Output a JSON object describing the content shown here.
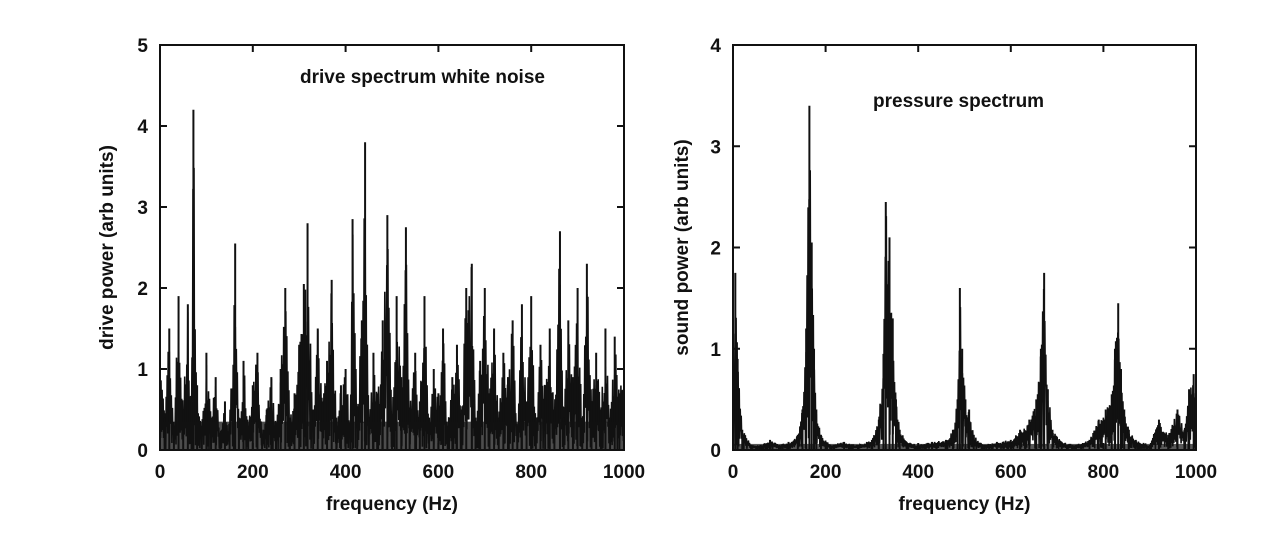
{
  "chart_data": [
    {
      "type": "line",
      "annotation": "drive spectrum  white noise",
      "xlabel": "frequency (Hz)",
      "ylabel": "drive power (arb units)",
      "xlim": [
        0,
        1000
      ],
      "ylim": [
        0,
        5
      ],
      "xticks": [
        "0",
        "200",
        "400",
        "600",
        "800",
        "1000"
      ],
      "yticks": [
        "0",
        "1",
        "2",
        "3",
        "4",
        "5"
      ],
      "grid": false,
      "color": "#111111",
      "description": "dense white-noise spectrum, baseline ~0.3-1.0",
      "series": [
        {
          "x": [
            0,
            10,
            20,
            30,
            40,
            50,
            60,
            68,
            72,
            80,
            90,
            100,
            110,
            120,
            130,
            140,
            150,
            162,
            170,
            180,
            190,
            200,
            210,
            220,
            230,
            240,
            250,
            260,
            270,
            280,
            290,
            300,
            310,
            318,
            330,
            340,
            350,
            360,
            370,
            380,
            390,
            400,
            410,
            415,
            425,
            435,
            442,
            450,
            460,
            470,
            480,
            490,
            500,
            510,
            520,
            530,
            538,
            550,
            560,
            570,
            580,
            590,
            600,
            610,
            620,
            630,
            640,
            650,
            660,
            672,
            680,
            690,
            700,
            710,
            720,
            730,
            740,
            750,
            760,
            770,
            780,
            790,
            800,
            810,
            820,
            830,
            840,
            850,
            862,
            870,
            880,
            890,
            900,
            910,
            920,
            930,
            940,
            950,
            960,
            970,
            980,
            990,
            1000
          ],
          "y": [
            1.6,
            0.4,
            1.5,
            0.3,
            1.9,
            0.5,
            1.8,
            0.6,
            4.2,
            0.8,
            0.3,
            1.2,
            0.4,
            0.9,
            0.2,
            0.6,
            0.3,
            2.55,
            0.4,
            1.1,
            0.3,
            0.8,
            1.2,
            0.2,
            0.5,
            0.9,
            0.3,
            1.0,
            2.0,
            0.4,
            0.7,
            1.3,
            2.05,
            2.8,
            0.5,
            1.5,
            0.6,
            1.1,
            2.1,
            0.4,
            0.8,
            1.0,
            0.3,
            2.85,
            0.5,
            1.6,
            3.8,
            0.4,
            1.2,
            0.7,
            1.6,
            2.9,
            0.3,
            1.9,
            0.9,
            2.75,
            0.5,
            1.2,
            0.6,
            1.9,
            0.4,
            1.0,
            0.7,
            1.5,
            0.3,
            0.9,
            1.3,
            0.5,
            2.0,
            2.3,
            0.4,
            1.1,
            2.0,
            0.7,
            1.5,
            0.4,
            1.2,
            0.9,
            1.6,
            0.3,
            1.8,
            0.6,
            1.9,
            0.4,
            1.3,
            0.8,
            1.5,
            0.5,
            2.7,
            0.4,
            1.6,
            0.9,
            2.0,
            0.3,
            2.3,
            0.6,
            1.2,
            0.5,
            1.5,
            0.4,
            1.4,
            0.7,
            1.2
          ]
        }
      ]
    },
    {
      "type": "line",
      "annotation": "pressure spectrum",
      "xlabel": "frequency (Hz)",
      "ylabel": "sound power (arb units)",
      "xlim": [
        0,
        1000
      ],
      "ylim": [
        0,
        4
      ],
      "xticks": [
        "0",
        "200",
        "400",
        "600",
        "800",
        "1000"
      ],
      "yticks": [
        "0",
        "1",
        "2",
        "3",
        "4"
      ],
      "grid": false,
      "color": "#111111",
      "series": [
        {
          "x": [
            0,
            5,
            10,
            20,
            40,
            60,
            80,
            100,
            120,
            140,
            150,
            158,
            165,
            170,
            175,
            180,
            190,
            210,
            240,
            270,
            300,
            315,
            325,
            330,
            338,
            345,
            352,
            360,
            375,
            400,
            430,
            460,
            475,
            485,
            490,
            495,
            502,
            510,
            520,
            540,
            570,
            600,
            620,
            640,
            655,
            665,
            672,
            680,
            690,
            710,
            740,
            770,
            790,
            805,
            818,
            825,
            832,
            838,
            845,
            855,
            870,
            900,
            920,
            940,
            960,
            975,
            985,
            995,
            1000
          ],
          "y": [
            0.1,
            1.75,
            0.9,
            0.2,
            0.05,
            0.05,
            0.1,
            0.05,
            0.08,
            0.15,
            0.4,
            1.2,
            3.4,
            2.05,
            1.0,
            0.4,
            0.15,
            0.05,
            0.08,
            0.05,
            0.1,
            0.3,
            0.95,
            2.45,
            2.1,
            1.3,
            0.5,
            0.2,
            0.08,
            0.05,
            0.08,
            0.1,
            0.2,
            0.5,
            1.6,
            1.0,
            0.5,
            0.4,
            0.15,
            0.05,
            0.08,
            0.1,
            0.2,
            0.3,
            0.5,
            1.0,
            1.75,
            0.6,
            0.2,
            0.08,
            0.05,
            0.1,
            0.3,
            0.4,
            0.55,
            1.0,
            1.45,
            0.8,
            0.4,
            0.2,
            0.1,
            0.05,
            0.3,
            0.15,
            0.4,
            0.2,
            0.6,
            0.75,
            0.4
          ]
        }
      ]
    }
  ]
}
